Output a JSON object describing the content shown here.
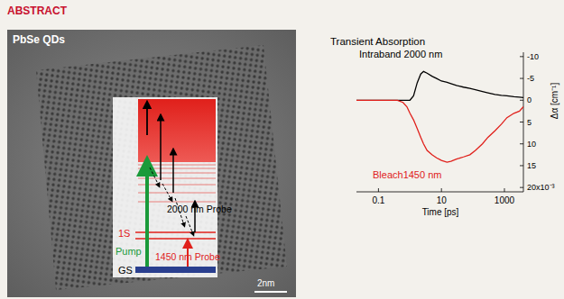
{
  "header": {
    "title": "ABSTRACT"
  },
  "diagram": {
    "image_label": "PbSe QDs",
    "scale_bar": "2nm",
    "levels": {
      "excited": "1S",
      "ground": "GS"
    },
    "transitions": {
      "pump": "Pump",
      "bleach_probe": "1450 nm Probe",
      "intraband_probe": "2000 nm Probe"
    }
  },
  "chart_data": {
    "type": "line",
    "title": "Transient Absorption",
    "x_label": "Time [ps]",
    "y_label": "Δα [cm⁻¹]",
    "log": "x",
    "x": [
      0.02,
      0.1,
      0.4,
      0.6,
      0.8,
      1,
      1.3,
      1.7,
      2.2,
      2.7,
      3.5,
      5,
      7,
      10,
      15,
      20,
      30,
      50,
      80,
      120,
      200,
      300,
      500,
      800,
      1200,
      2000,
      3000,
      4000
    ],
    "series": [
      {
        "name": "Intraband 2000 nm",
        "color": "#000000",
        "values": [
          0,
          0,
          0,
          0,
          0,
          0,
          -1,
          -4,
          -6,
          -6.6,
          -6.2,
          -5.5,
          -5,
          -4.4,
          -4.1,
          -3.8,
          -3.4,
          -3,
          -2.7,
          -2.4,
          -2,
          -1.7,
          -1.3,
          -1.1,
          -1,
          -0.8,
          -0.7,
          -0.6
        ]
      },
      {
        "name": "Bleach1450 nm",
        "color": "#e0201b",
        "values": [
          0,
          0,
          0,
          0.5,
          1.5,
          3,
          4.5,
          6.5,
          8.5,
          10,
          11.5,
          12.5,
          13.2,
          13.8,
          14.2,
          14,
          13.5,
          13,
          12.5,
          11.5,
          10,
          8.5,
          7,
          5.5,
          4,
          3,
          2.5,
          1.5
        ]
      }
    ],
    "xlim": [
      0.02,
      4000
    ],
    "xticks": [
      0.1,
      10,
      1000
    ],
    "ylim": [
      21,
      -11
    ],
    "yticks": [
      -10,
      -5,
      0,
      5,
      10,
      15,
      {
        "value": 20,
        "label": "20x10⁻³"
      }
    ],
    "grid": false
  }
}
